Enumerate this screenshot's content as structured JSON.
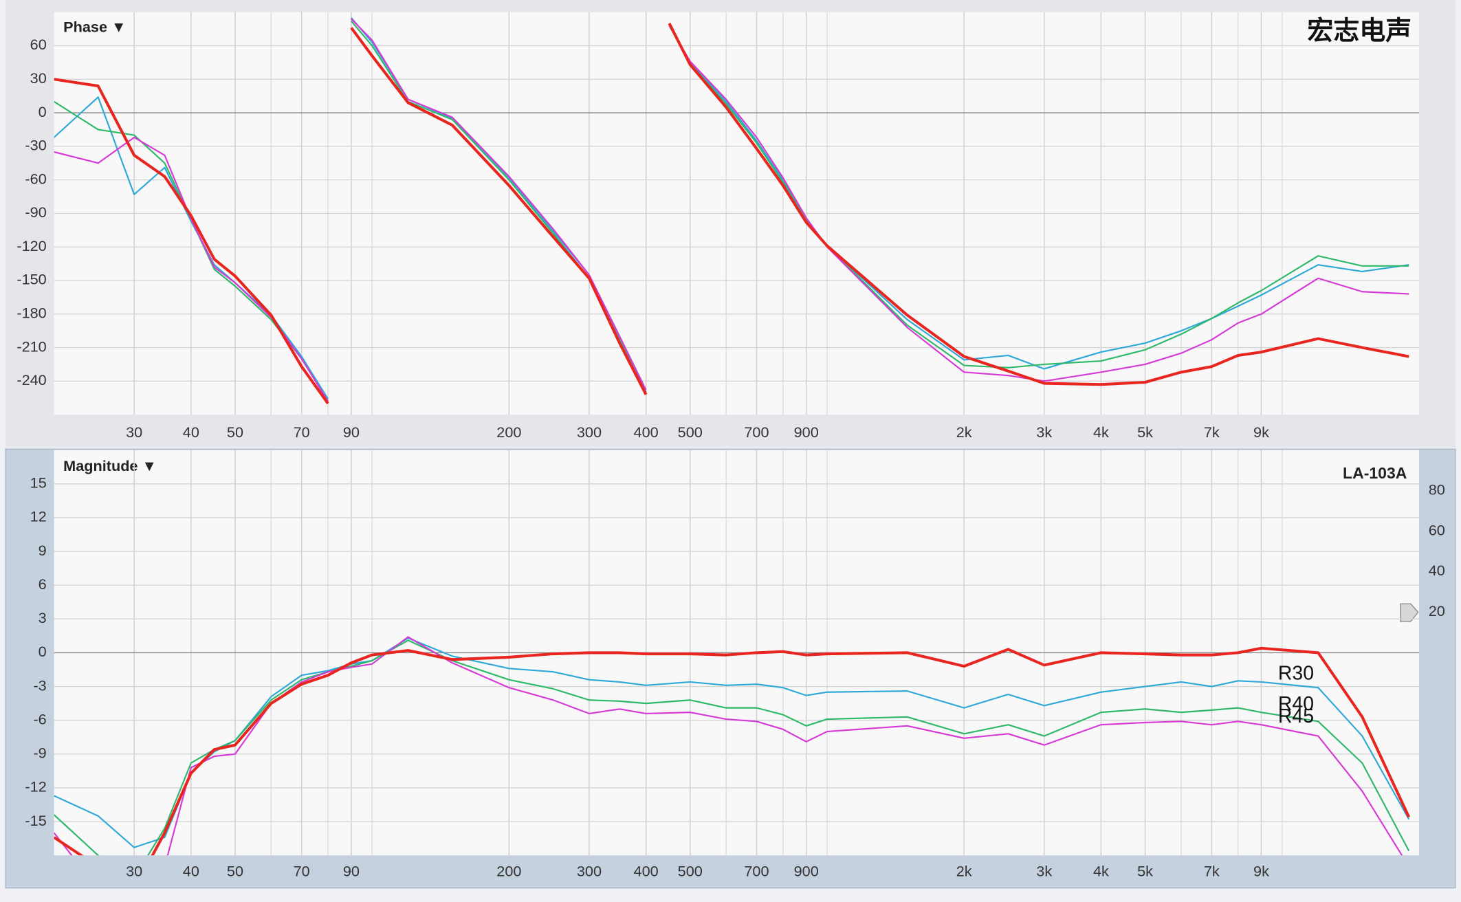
{
  "chart_data": [
    {
      "type": "line",
      "title": "Phase ▼",
      "annotation": "宏志电声",
      "xscale": "log",
      "grid": true,
      "xlim": [
        20,
        20000
      ],
      "ylim": [
        -270,
        90
      ],
      "xticks": [
        30,
        40,
        50,
        70,
        90,
        200,
        300,
        400,
        500,
        700,
        900,
        {
          "value": 2000,
          "label": "2k"
        },
        {
          "value": 3000,
          "label": "3k"
        },
        {
          "value": 4000,
          "label": "4k"
        },
        {
          "value": 5000,
          "label": "5k"
        },
        {
          "value": 7000,
          "label": "7k"
        },
        {
          "value": 9000,
          "label": "9k"
        }
      ],
      "yticks": [
        60,
        30,
        0,
        -30,
        -60,
        -90,
        -120,
        -150,
        -180,
        -210,
        -240
      ],
      "x": [
        20,
        25,
        30,
        35,
        40,
        45,
        50,
        60,
        70,
        80,
        85,
        90,
        100,
        120,
        150,
        200,
        250,
        300,
        350,
        400,
        420,
        450,
        500,
        600,
        700,
        800,
        900,
        1000,
        1500,
        2000,
        2500,
        3000,
        4000,
        5000,
        6000,
        7000,
        8000,
        9000,
        12000,
        15000,
        19000
      ],
      "series": [
        {
          "color": "#2fa8d8",
          "values": [
            -22,
            14,
            -73,
            -49,
            -97,
            -136,
            -152,
            -181,
            -218,
            -256,
            null,
            85,
            63,
            12,
            -5,
            -58,
            -106,
            -145,
            -200,
            -248,
            null,
            78,
            45,
            10,
            -25,
            -60,
            -95,
            -119,
            -185,
            -221,
            -217,
            -229,
            -214,
            -206,
            -195,
            -184,
            -173,
            -163,
            -136,
            -142,
            -136
          ]
        },
        {
          "color": "#2fb86a",
          "values": [
            10,
            -15,
            -20,
            -45,
            -95,
            -140,
            -155,
            -185,
            -220,
            -258,
            null,
            82,
            60,
            10,
            -6,
            -60,
            -108,
            -148,
            -203,
            -250,
            null,
            78,
            44,
            8,
            -27,
            -62,
            -96,
            -119,
            -190,
            -226,
            -228,
            -225,
            -222,
            -212,
            -198,
            -184,
            -170,
            -159,
            -128,
            -137,
            -137
          ]
        },
        {
          "color": "#d63ad6",
          "values": [
            -35,
            -45,
            -22,
            -38,
            -95,
            -138,
            -152,
            -183,
            -220,
            -258,
            null,
            84,
            65,
            12,
            -4,
            -57,
            -104,
            -145,
            -200,
            -248,
            null,
            78,
            46,
            12,
            -22,
            -58,
            -94,
            -120,
            -192,
            -232,
            -235,
            -240,
            -232,
            -225,
            -215,
            -203,
            -188,
            -180,
            -148,
            -160,
            -162
          ]
        },
        {
          "color": "#e8251f",
          "values": [
            30,
            24,
            -38,
            -57,
            -92,
            -131,
            -146,
            -181,
            -227,
            -260,
            null,
            76,
            51,
            9,
            -11,
            -65,
            -111,
            -148,
            -206,
            -252,
            null,
            80,
            43,
            5,
            -32,
            -65,
            -98,
            -119,
            -181,
            -218,
            -231,
            -242,
            -243,
            -241,
            -232,
            -227,
            -217,
            -214,
            -202,
            -210,
            -218
          ]
        }
      ]
    },
    {
      "type": "line",
      "title": "Magnitude ▼",
      "annotation": "LA-103A",
      "xscale": "log",
      "grid": true,
      "xlim": [
        20,
        20000
      ],
      "ylim": [
        -18,
        18
      ],
      "y2lim": [
        -100,
        100
      ],
      "y2ticks": [
        80,
        60,
        40,
        20
      ],
      "xticks": [
        30,
        40,
        50,
        70,
        90,
        200,
        300,
        400,
        500,
        700,
        900,
        {
          "value": 2000,
          "label": "2k"
        },
        {
          "value": 3000,
          "label": "3k"
        },
        {
          "value": 4000,
          "label": "4k"
        },
        {
          "value": 5000,
          "label": "5k"
        },
        {
          "value": 7000,
          "label": "7k"
        },
        {
          "value": 9000,
          "label": "9k"
        }
      ],
      "yticks": [
        15,
        12,
        9,
        6,
        3,
        0,
        -3,
        -6,
        -9,
        -12,
        -15
      ],
      "x": [
        20,
        25,
        30,
        35,
        40,
        45,
        50,
        60,
        70,
        80,
        90,
        100,
        120,
        150,
        200,
        250,
        300,
        350,
        400,
        500,
        600,
        700,
        800,
        900,
        1000,
        1500,
        2000,
        2500,
        3000,
        4000,
        5000,
        6000,
        7000,
        8000,
        9000,
        12000,
        15000,
        19000
      ],
      "series": [
        {
          "name": "R30",
          "color": "#2fa8d8",
          "values": [
            -12.7,
            -14.5,
            -17.3,
            -16.4,
            -10.7,
            -8.8,
            -7.8,
            -3.9,
            -2,
            -1.6,
            -1,
            -0.7,
            1.3,
            -0.3,
            -1.4,
            -1.7,
            -2.4,
            -2.6,
            -2.9,
            -2.6,
            -2.9,
            -2.8,
            -3.1,
            -3.8,
            -3.5,
            -3.4,
            -4.9,
            -3.7,
            -4.7,
            -3.5,
            -3,
            -2.6,
            -3,
            -2.5,
            -2.6,
            -3.1,
            -7.4,
            -14.8
          ]
        },
        {
          "name": "R40",
          "color": "#2fb86a",
          "values": [
            -14.4,
            -18,
            -20,
            -15.6,
            -9.8,
            -8.6,
            -7.8,
            -4.2,
            -2.4,
            -1.7,
            -1.2,
            -0.7,
            1.1,
            -0.7,
            -2.4,
            -3.2,
            -4.2,
            -4.3,
            -4.5,
            -4.2,
            -4.9,
            -4.9,
            -5.5,
            -6.5,
            -5.9,
            -5.7,
            -7.2,
            -6.4,
            -7.4,
            -5.3,
            -5,
            -5.3,
            -5.1,
            -4.9,
            -5.3,
            -6.1,
            -9.8,
            -17.6
          ]
        },
        {
          "name": "R45",
          "color": "#d63ad6",
          "values": [
            -16,
            -21,
            -22,
            -19,
            -10.2,
            -9.2,
            -9,
            -4.5,
            -2.6,
            -1.7,
            -1.3,
            -1,
            1.4,
            -0.9,
            -3.1,
            -4.2,
            -5.4,
            -5,
            -5.4,
            -5.3,
            -5.9,
            -6.1,
            -6.8,
            -7.9,
            -7,
            -6.5,
            -7.6,
            -7.2,
            -8.2,
            -6.4,
            -6.2,
            -6.1,
            -6.4,
            -6.1,
            -6.4,
            -7.4,
            -12.3,
            -19
          ]
        },
        {
          "color": "#e8251f",
          "values": [
            -16.4,
            -19,
            -21,
            -16,
            -10.7,
            -8.6,
            -8.2,
            -4.5,
            -2.8,
            -2,
            -0.9,
            -0.2,
            0.2,
            -0.6,
            -0.4,
            -0.1,
            0,
            0,
            -0.1,
            -0.1,
            -0.2,
            0,
            0.1,
            -0.2,
            -0.1,
            0,
            -1.2,
            0.3,
            -1.1,
            0,
            -0.1,
            -0.2,
            -0.2,
            0,
            0.4,
            0,
            -5.7,
            -14.6
          ]
        }
      ]
    }
  ]
}
